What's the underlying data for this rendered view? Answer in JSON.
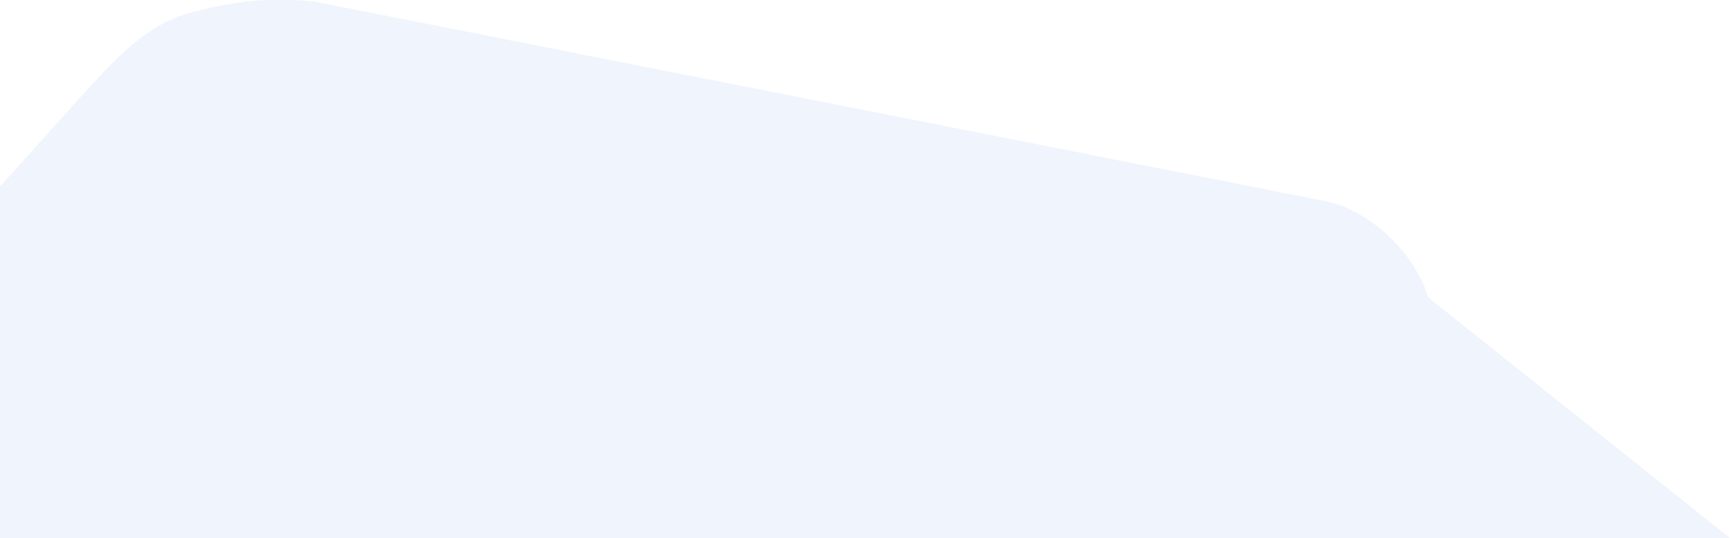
{
  "background": {
    "page_color": "#ffffff",
    "shape_color": "#eff4fd",
    "shape": "background-blob"
  }
}
